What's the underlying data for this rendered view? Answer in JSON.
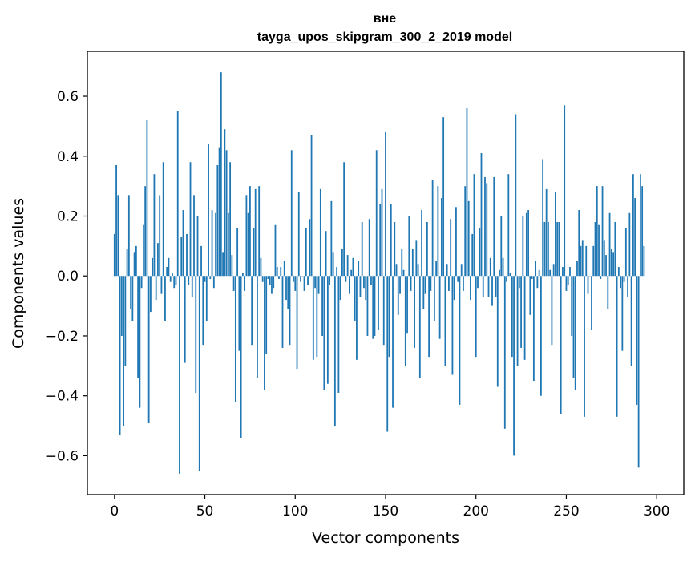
{
  "chart_data": {
    "type": "bar",
    "title": "вне",
    "subtitle": "tayga_upos_skipgram_300_2_2019 model",
    "xlabel": "Vector components",
    "ylabel": "Components values",
    "xlim": [
      -15,
      315
    ],
    "ylim": [
      -0.73,
      0.75
    ],
    "xticks": [
      0,
      50,
      100,
      150,
      200,
      250,
      300
    ],
    "yticks": [
      -0.6,
      -0.4,
      -0.2,
      0.0,
      0.2,
      0.4,
      0.6
    ],
    "xtick_labels": [
      "0",
      "50",
      "100",
      "150",
      "200",
      "250",
      "300"
    ],
    "ytick_labels": [
      "−0.6",
      "−0.4",
      "−0.2",
      "0.0",
      "0.2",
      "0.4",
      "0.6"
    ],
    "grid": false,
    "bar_color": "#1f77b4",
    "values": [
      0.14,
      0.37,
      0.27,
      -0.53,
      -0.2,
      -0.5,
      -0.3,
      0.09,
      0.27,
      -0.11,
      -0.15,
      0.08,
      0.1,
      -0.34,
      -0.44,
      -0.04,
      0.17,
      0.3,
      0.52,
      -0.49,
      -0.12,
      0.06,
      0.34,
      -0.08,
      0.11,
      0.27,
      -0.06,
      0.38,
      -0.15,
      0.03,
      0.06,
      -0.02,
      0.01,
      -0.04,
      -0.03,
      0.55,
      -0.66,
      0.13,
      0.22,
      -0.29,
      0.14,
      -0.03,
      0.38,
      -0.07,
      0.27,
      -0.39,
      0.2,
      -0.65,
      0.1,
      -0.23,
      -0.02,
      -0.15,
      0.44,
      -0.01,
      0.22,
      -0.04,
      0.21,
      0.37,
      0.43,
      0.68,
      0.08,
      0.49,
      0.42,
      0.21,
      0.38,
      0.07,
      -0.05,
      -0.42,
      0.16,
      -0.25,
      -0.54,
      0.01,
      -0.05,
      0.27,
      0.21,
      0.3,
      -0.23,
      0.16,
      0.29,
      -0.34,
      0.3,
      0.06,
      -0.02,
      -0.38,
      -0.26,
      -0.01,
      -0.03,
      -0.06,
      -0.04,
      0.17,
      0.03,
      -0.01,
      0.03,
      -0.24,
      0.05,
      -0.08,
      -0.11,
      -0.23,
      0.42,
      -0.02,
      -0.05,
      -0.31,
      0.28,
      -0.02,
      0.0,
      -0.05,
      0.16,
      -0.03,
      0.19,
      0.47,
      -0.28,
      -0.04,
      -0.27,
      -0.06,
      0.29,
      -0.2,
      -0.38,
      0.15,
      -0.36,
      -0.03,
      0.25,
      0.08,
      -0.5,
      0.03,
      -0.39,
      -0.08,
      0.09,
      0.38,
      -0.02,
      0.07,
      -0.06,
      0.02,
      0.06,
      -0.15,
      -0.28,
      0.05,
      -0.07,
      0.18,
      -0.04,
      -0.08,
      -0.2,
      0.19,
      -0.03,
      -0.21,
      -0.2,
      0.42,
      -0.18,
      0.24,
      0.29,
      -0.23,
      0.48,
      -0.52,
      -0.27,
      0.24,
      -0.44,
      0.18,
      0.04,
      -0.13,
      -0.06,
      0.09,
      0.02,
      -0.3,
      -0.19,
      0.2,
      -0.05,
      0.09,
      -0.24,
      0.12,
      0.04,
      -0.34,
      0.22,
      -0.11,
      -0.06,
      0.18,
      -0.27,
      -0.05,
      0.32,
      -0.15,
      0.05,
      0.3,
      -0.21,
      0.26,
      0.53,
      -0.3,
      0.04,
      -0.05,
      0.19,
      -0.33,
      -0.08,
      0.23,
      -0.02,
      -0.43,
      0.04,
      -0.05,
      0.3,
      0.56,
      0.25,
      -0.08,
      0.14,
      0.34,
      -0.27,
      -0.04,
      0.16,
      0.41,
      -0.07,
      0.33,
      0.31,
      -0.07,
      0.06,
      -0.1,
      0.33,
      -0.07,
      -0.37,
      0.02,
      0.2,
      0.06,
      -0.51,
      -0.02,
      0.34,
      0.01,
      -0.27,
      -0.6,
      0.54,
      -0.3,
      -0.04,
      -0.24,
      0.2,
      -0.28,
      0.21,
      0.22,
      -0.13,
      -0.01,
      -0.35,
      0.05,
      -0.04,
      0.02,
      -0.4,
      0.39,
      0.18,
      0.29,
      0.18,
      0.02,
      -0.23,
      0.04,
      0.28,
      0.18,
      0.18,
      -0.46,
      0.03,
      0.57,
      -0.05,
      -0.03,
      0.03,
      -0.2,
      -0.34,
      -0.38,
      0.05,
      0.22,
      0.1,
      0.12,
      -0.47,
      0.1,
      -0.06,
      0.0,
      -0.18,
      0.1,
      0.18,
      0.3,
      0.17,
      -0.01,
      0.3,
      0.12,
      0.07,
      -0.11,
      0.21,
      0.09,
      0.08,
      0.18,
      -0.47,
      0.03,
      -0.04,
      -0.25,
      -0.02,
      0.16,
      -0.07,
      0.21,
      -0.3,
      0.34,
      0.26,
      -0.43,
      -0.64,
      0.34,
      0.3,
      0.1
    ]
  }
}
